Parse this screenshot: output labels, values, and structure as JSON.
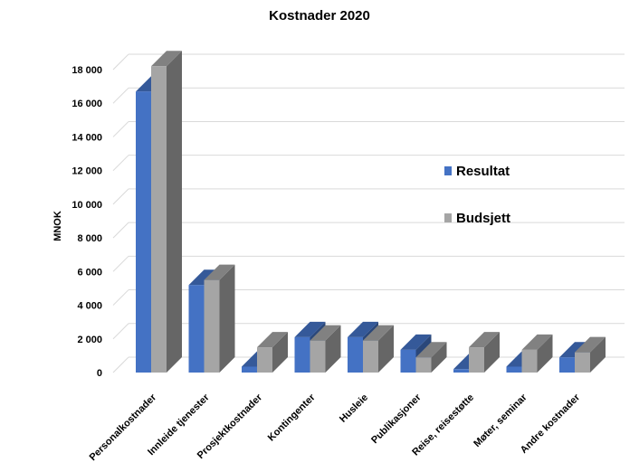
{
  "chart_data": {
    "type": "bar",
    "title": "Kostnader 2020",
    "xlabel": "",
    "ylabel": "MNOK",
    "ylim": [
      0,
      18000
    ],
    "yticks": [
      "0",
      "2 000",
      "4 000",
      "6 000",
      "8 000",
      "10 000",
      "12 000",
      "14 000",
      "16 000",
      "18 000"
    ],
    "ytick_values": [
      0,
      2000,
      4000,
      6000,
      8000,
      10000,
      12000,
      14000,
      16000,
      18000
    ],
    "grid": true,
    "legend_position": "right",
    "categories": [
      "Personalkostnader",
      "Innleide tjenester",
      "Prosjektkostnader",
      "Kontingenter",
      "Husleie",
      "Publikasjoner",
      "Reise, reisestøtte",
      "Møter, seminar",
      "Andre kostnader"
    ],
    "series": [
      {
        "name": "Resultat",
        "color": "#4472C4",
        "values": [
          16700,
          5200,
          350,
          2100,
          2100,
          1350,
          200,
          350,
          900
        ]
      },
      {
        "name": "Budsjett",
        "color": "#A5A5A5",
        "values": [
          18200,
          5500,
          1500,
          1900,
          1900,
          900,
          1500,
          1350,
          1200
        ]
      }
    ]
  }
}
